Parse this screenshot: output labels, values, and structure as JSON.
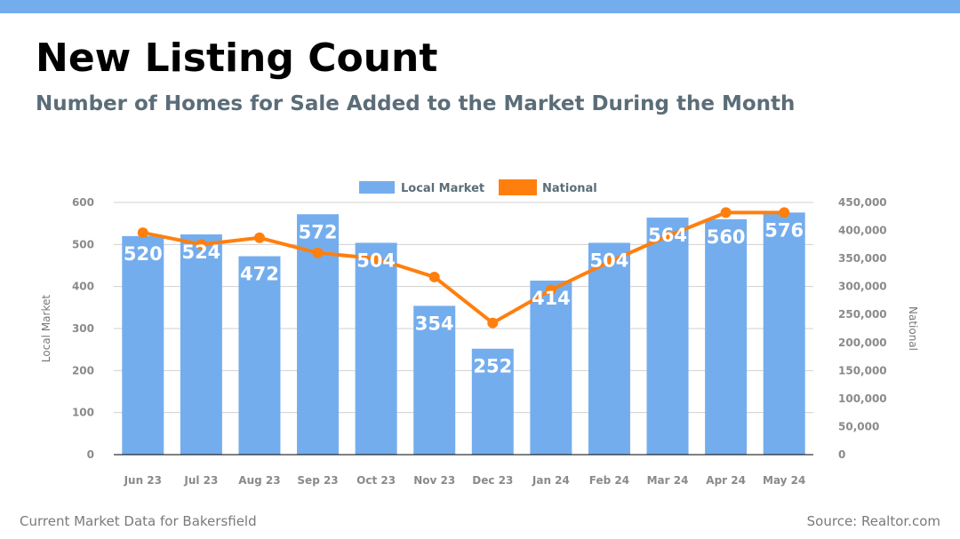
{
  "header": {
    "title": "New Listing Count",
    "subtitle": "Number of Homes for Sale Added to the Market During the Month"
  },
  "footer": {
    "left": "Current Market Data for Bakersfield",
    "right": "Source: Realtor.com"
  },
  "colors": {
    "accent_bar": "#74aded",
    "local": "#74aded",
    "national": "#ff7f0e",
    "title": "#000000",
    "subtitle": "#5b6d78",
    "axis_text": "#8a8a8a",
    "grid": "#d0d0d0"
  },
  "chart_data": {
    "type": "bar",
    "categories": [
      "Jun 23",
      "Jul 23",
      "Aug 23",
      "Sep 23",
      "Oct 23",
      "Nov 23",
      "Dec 23",
      "Jan 24",
      "Feb 24",
      "Mar 24",
      "Apr 24",
      "May 24"
    ],
    "series": [
      {
        "name": "Local Market",
        "type": "bar",
        "axis": "left",
        "values": [
          520,
          524,
          472,
          572,
          504,
          354,
          252,
          414,
          504,
          564,
          560,
          576
        ]
      },
      {
        "name": "National",
        "type": "line",
        "axis": "right",
        "values": [
          396000,
          375000,
          387000,
          360000,
          350000,
          317000,
          235000,
          294000,
          344000,
          390000,
          432000,
          432000
        ]
      }
    ],
    "ylabel": "Local Market",
    "y2label": "National",
    "ylim": [
      0,
      600
    ],
    "y2lim": [
      0,
      450000
    ],
    "yticks": [
      "0",
      "100",
      "200",
      "300",
      "400",
      "500",
      "600"
    ],
    "y2ticks": [
      "0",
      "50,000",
      "100,000",
      "150,000",
      "200,000",
      "250,000",
      "300,000",
      "350,000",
      "400,000",
      "450,000"
    ],
    "grid": true,
    "legend": "top-center"
  }
}
